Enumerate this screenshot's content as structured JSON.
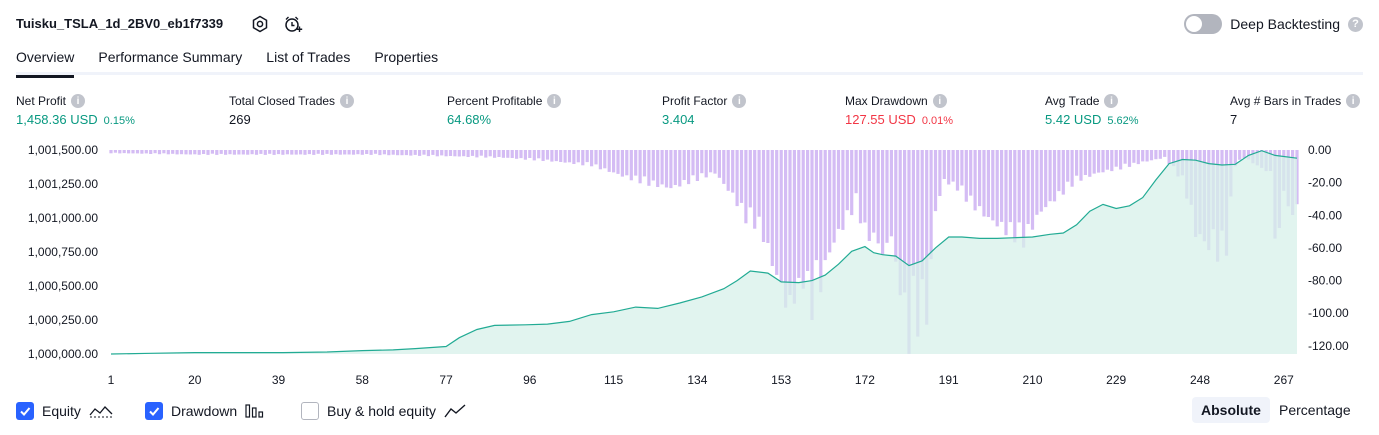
{
  "header": {
    "strategy_name": "Tuisku_TSLA_1d_2BV0_eb1f7339",
    "deep_backtesting_label": "Deep Backtesting"
  },
  "tabs": [
    {
      "label": "Overview"
    },
    {
      "label": "Performance Summary"
    },
    {
      "label": "List of Trades"
    },
    {
      "label": "Properties"
    }
  ],
  "metrics": {
    "net_profit": {
      "label": "Net Profit",
      "value": "1,458.36 USD",
      "sub": "0.15%"
    },
    "total_closed_trades": {
      "label": "Total Closed Trades",
      "value": "269"
    },
    "percent_profitable": {
      "label": "Percent Profitable",
      "value": "64.68%"
    },
    "profit_factor": {
      "label": "Profit Factor",
      "value": "3.404"
    },
    "max_drawdown": {
      "label": "Max Drawdown",
      "value": "127.55 USD",
      "sub": "0.01%"
    },
    "avg_trade": {
      "label": "Avg Trade",
      "value": "5.42 USD",
      "sub": "5.62%"
    },
    "avg_bars": {
      "label": "Avg # Bars in Trades",
      "value": "7"
    }
  },
  "footer": {
    "equity_label": "Equity",
    "drawdown_label": "Drawdown",
    "buy_hold_label": "Buy & hold equity",
    "absolute_label": "Absolute",
    "percentage_label": "Percentage"
  },
  "colors": {
    "equity_line": "#22ab94",
    "equity_fill": "#d7f0ea",
    "drawdown": "#ccb0f2",
    "accent": "#2962ff",
    "profit": "#089981",
    "loss": "#f23645"
  },
  "chart_data": {
    "type": "area",
    "x_ticks": [
      "1",
      "20",
      "39",
      "58",
      "77",
      "96",
      "115",
      "134",
      "153",
      "172",
      "191",
      "210",
      "229",
      "248",
      "267"
    ],
    "left_axis": {
      "ticks": [
        "1,001,500.00",
        "1,001,250.00",
        "1,001,000.00",
        "1,000,750.00",
        "1,000,500.00",
        "1,000,250.00",
        "1,000,000.00"
      ],
      "ylim": [
        1000000,
        1001500
      ]
    },
    "right_axis": {
      "ticks": [
        "0.00",
        "-20.00",
        "-40.00",
        "-60.00",
        "-80.00",
        "-100.00",
        "-120.00"
      ],
      "ylim": [
        -125,
        0
      ]
    },
    "series": [
      {
        "name": "Equity",
        "x": [
          1,
          10,
          20,
          30,
          40,
          50,
          58,
          65,
          70,
          77,
          80,
          84,
          88,
          95,
          100,
          105,
          110,
          115,
          120,
          125,
          130,
          135,
          140,
          143,
          146,
          150,
          153,
          157,
          160,
          163,
          166,
          169,
          172,
          174,
          176,
          179,
          182,
          185,
          188,
          191,
          194,
          198,
          202,
          206,
          210,
          214,
          217,
          220,
          223,
          226,
          229,
          232,
          235,
          238,
          241,
          244,
          247,
          250,
          253,
          256,
          259,
          262,
          265,
          270
        ],
        "values": [
          1000000,
          1000005,
          1000010,
          1000010,
          1000010,
          1000015,
          1000025,
          1000030,
          1000040,
          1000055,
          1000120,
          1000180,
          1000210,
          1000215,
          1000220,
          1000240,
          1000290,
          1000310,
          1000345,
          1000335,
          1000375,
          1000420,
          1000480,
          1000540,
          1000610,
          1000595,
          1000530,
          1000525,
          1000540,
          1000580,
          1000660,
          1000755,
          1000790,
          1000745,
          1000730,
          1000720,
          1000650,
          1000685,
          1000780,
          1000860,
          1000860,
          1000850,
          1000850,
          1000855,
          1000860,
          1000880,
          1000890,
          1000950,
          1001050,
          1001100,
          1001070,
          1001090,
          1001150,
          1001280,
          1001400,
          1001430,
          1001425,
          1001400,
          1001390,
          1001395,
          1001460,
          1001495,
          1001460,
          1001440
        ]
      },
      {
        "name": "Drawdown",
        "x": [
          1,
          20,
          40,
          60,
          77,
          90,
          100,
          110,
          118,
          123,
          128,
          133,
          138,
          142,
          145,
          148,
          150,
          151,
          153,
          154,
          155,
          156,
          157,
          158,
          159,
          160,
          161,
          162,
          163,
          165,
          167,
          170,
          172,
          175,
          176,
          178,
          179,
          180,
          181,
          182,
          183,
          184,
          185,
          186,
          188,
          190,
          193,
          196,
          200,
          205,
          208,
          212,
          216,
          220,
          225,
          230,
          235,
          240,
          244,
          246,
          247,
          249,
          250,
          251,
          252,
          253,
          254,
          256,
          258,
          262,
          264,
          265,
          266,
          267,
          268,
          269
        ],
        "values": [
          -2,
          -3,
          -3,
          -3,
          -4,
          -5,
          -7,
          -10,
          -18,
          -22,
          -25,
          -20,
          -15,
          -30,
          -45,
          -50,
          -65,
          -75,
          -90,
          -100,
          -105,
          -95,
          -100,
          -85,
          -95,
          -105,
          -80,
          -90,
          -75,
          -60,
          -50,
          -35,
          -55,
          -60,
          -70,
          -55,
          -80,
          -90,
          -110,
          -125,
          -100,
          -115,
          -95,
          -110,
          -40,
          -20,
          -25,
          -35,
          -45,
          -55,
          -60,
          -40,
          -30,
          -20,
          -15,
          -12,
          -8,
          -5,
          -20,
          -40,
          -55,
          -60,
          -65,
          -55,
          -70,
          -60,
          -65,
          -10,
          -5,
          -12,
          -15,
          -55,
          -60,
          -25,
          -45,
          -40
        ]
      }
    ]
  }
}
